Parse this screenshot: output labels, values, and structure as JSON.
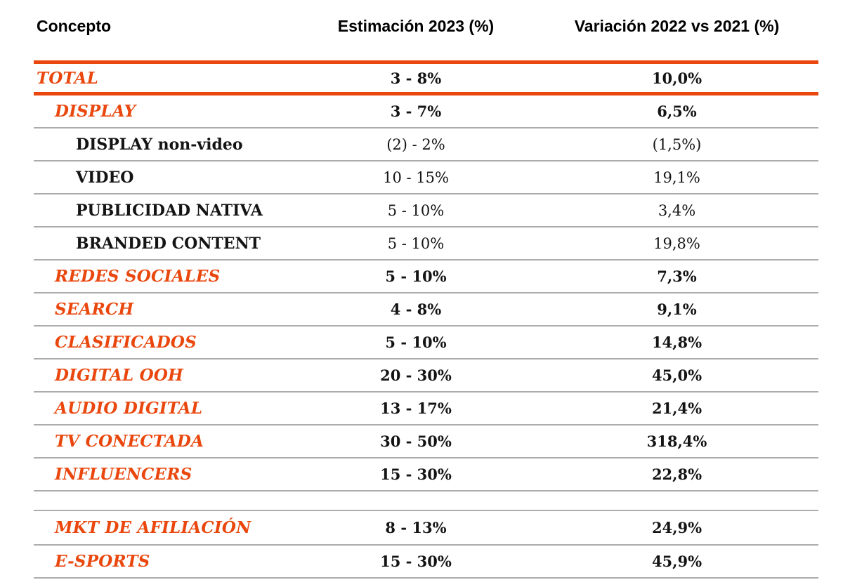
{
  "table": {
    "header": {
      "concepto": "Concepto",
      "estimacion": "Estimación 2023 (%)",
      "variacion": "Variación 2022 vs 2021 (%)"
    },
    "rows": [
      {
        "concepto": "TOTAL",
        "estimacion": "3 - 8%",
        "variacion": "10,0%"
      },
      {
        "concepto": "DISPLAY",
        "estimacion": "3 - 7%",
        "variacion": "6,5%"
      },
      {
        "concepto": "DISPLAY non-video",
        "estimacion": "(2) - 2%",
        "variacion": "(1,5%)"
      },
      {
        "concepto": "VIDEO",
        "estimacion": "10 - 15%",
        "variacion": "19,1%"
      },
      {
        "concepto": "PUBLICIDAD NATIVA",
        "estimacion": "5 - 10%",
        "variacion": "3,4%"
      },
      {
        "concepto": "BRANDED CONTENT",
        "estimacion": "5 - 10%",
        "variacion": "19,8%"
      },
      {
        "concepto": "REDES SOCIALES",
        "estimacion": "5 - 10%",
        "variacion": "7,3%"
      },
      {
        "concepto": "SEARCH",
        "estimacion": "4 - 8%",
        "variacion": "9,1%"
      },
      {
        "concepto": "CLASIFICADOS",
        "estimacion": "5 - 10%",
        "variacion": "14,8%"
      },
      {
        "concepto": "DIGITAL OOH",
        "estimacion": "20 - 30%",
        "variacion": "45,0%"
      },
      {
        "concepto": "AUDIO DIGITAL",
        "estimacion": "13 - 17%",
        "variacion": "21,4%"
      },
      {
        "concepto": "TV CONECTADA",
        "estimacion": "30 - 50%",
        "variacion": "318,4%"
      },
      {
        "concepto": "INFLUENCERS",
        "estimacion": "15 - 30%",
        "variacion": "22,8%"
      },
      {
        "concepto": "MKT DE AFILIACIÓN",
        "estimacion": "8 - 13%",
        "variacion": "24,9%"
      },
      {
        "concepto": "E-SPORTS",
        "estimacion": "15 - 30%",
        "variacion": "45,9%"
      }
    ]
  },
  "colors": {
    "accent_orange": "#E9470D",
    "separator_gray": "#ACACAC",
    "text_dark": "#141414"
  },
  "chart_data": {
    "type": "table",
    "title": "Estimación 2023 y Variación 2022 vs 2021 por concepto",
    "columns": [
      "Concepto",
      "Estimación 2023 (%)",
      "Variación 2022 vs 2021 (%)"
    ],
    "rows": [
      [
        "TOTAL",
        "3 - 8%",
        "10,0%"
      ],
      [
        "DISPLAY",
        "3 - 7%",
        "6,5%"
      ],
      [
        "DISPLAY non-video",
        "(2) - 2%",
        "(1,5%)"
      ],
      [
        "VIDEO",
        "10 - 15%",
        "19,1%"
      ],
      [
        "PUBLICIDAD NATIVA",
        "5 - 10%",
        "3,4%"
      ],
      [
        "BRANDED CONTENT",
        "5 - 10%",
        "19,8%"
      ],
      [
        "REDES SOCIALES",
        "5 - 10%",
        "7,3%"
      ],
      [
        "SEARCH",
        "4 - 8%",
        "9,1%"
      ],
      [
        "CLASIFICADOS",
        "5 - 10%",
        "14,8%"
      ],
      [
        "DIGITAL OOH",
        "20 - 30%",
        "45,0%"
      ],
      [
        "AUDIO DIGITAL",
        "13 - 17%",
        "21,4%"
      ],
      [
        "TV CONECTADA",
        "30 - 50%",
        "318,4%"
      ],
      [
        "INFLUENCERS",
        "15 - 30%",
        "22,8%"
      ],
      [
        "MKT DE AFILIACIÓN",
        "8 - 13%",
        "24,9%"
      ],
      [
        "E-SPORTS",
        "15 - 30%",
        "45,9%"
      ]
    ],
    "variacion_numeric": [
      10.0,
      6.5,
      -1.5,
      19.1,
      3.4,
      19.8,
      7.3,
      9.1,
      14.8,
      45.0,
      21.4,
      318.4,
      22.8,
      24.9,
      45.9
    ]
  }
}
